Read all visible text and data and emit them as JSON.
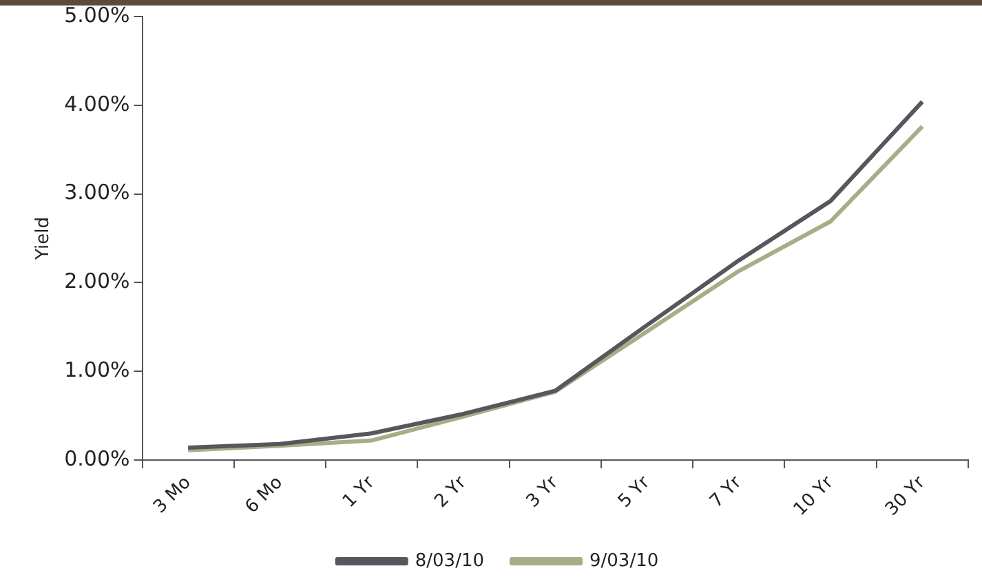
{
  "chart_data": {
    "type": "line",
    "ylabel": "Yield",
    "categories": [
      "3 Mo",
      "6 Mo",
      "1 Yr",
      "2 Yr",
      "3 Yr",
      "5 Yr",
      "7 Yr",
      "10 Yr",
      "30 Yr"
    ],
    "series": [
      {
        "name": "8/03/10",
        "color": "#55575d",
        "values": [
          0.14,
          0.18,
          0.3,
          0.52,
          0.78,
          1.52,
          2.25,
          2.92,
          4.04
        ]
      },
      {
        "name": "9/03/10",
        "color": "#a7ae86",
        "values": [
          0.11,
          0.16,
          0.22,
          0.49,
          0.77,
          1.45,
          2.13,
          2.69,
          3.76
        ]
      }
    ],
    "ylim": [
      0,
      5
    ],
    "yticks": [
      {
        "value": 0,
        "label": "0.00%"
      },
      {
        "value": 1,
        "label": "1.00%"
      },
      {
        "value": 2,
        "label": "2.00%"
      },
      {
        "value": 3,
        "label": "3.00%"
      },
      {
        "value": 4,
        "label": "4.00%"
      },
      {
        "value": 5,
        "label": "5.00%"
      }
    ],
    "grid": false,
    "legend": "bottom",
    "marker": "none",
    "line_style": "solid"
  }
}
